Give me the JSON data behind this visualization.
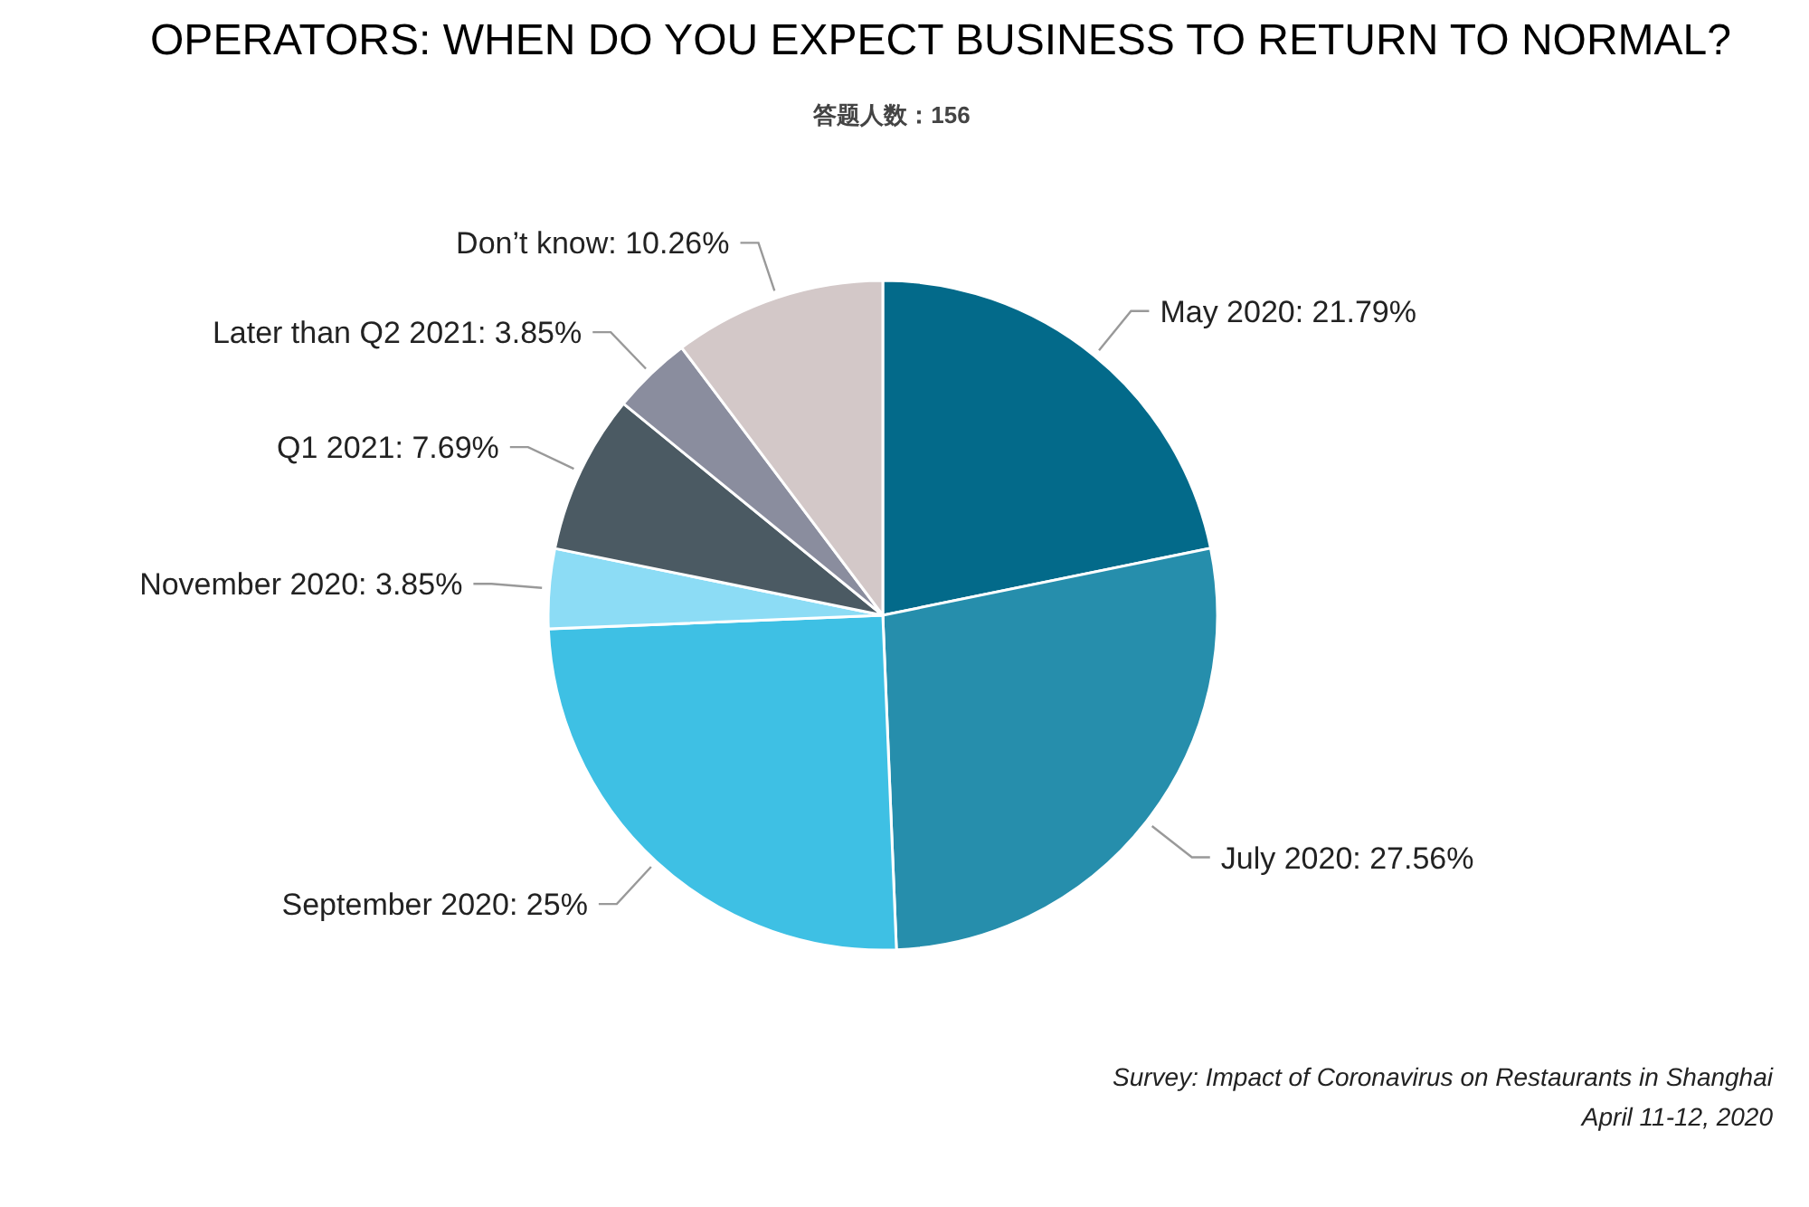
{
  "chart_data": {
    "type": "pie",
    "title": "OPERATORS: WHEN DO YOU EXPECT BUSINESS TO RETURN TO NORMAL?",
    "subtitle": "答题人数：156",
    "categories": [
      "May 2020",
      "July 2020",
      "September 2020",
      "November 2020",
      "Q1 2021",
      "Later than Q2 2021",
      "Don’t know"
    ],
    "values": [
      21.79,
      27.56,
      25,
      3.85,
      7.69,
      3.85,
      10.26
    ],
    "value_labels": [
      "21.79%",
      "27.56%",
      "25%",
      "3.85%",
      "7.69%",
      "3.85%",
      "10.26%"
    ],
    "colors": [
      "#036a8a",
      "#268eac",
      "#3ec0e4",
      "#8cdcf5",
      "#4b5a63",
      "#8a8d9e",
      "#d3c8c8"
    ],
    "annotations": [
      "Survey: Impact of Coronavirus on Restaurants in Shanghai",
      "April 11-12, 2020"
    ]
  }
}
